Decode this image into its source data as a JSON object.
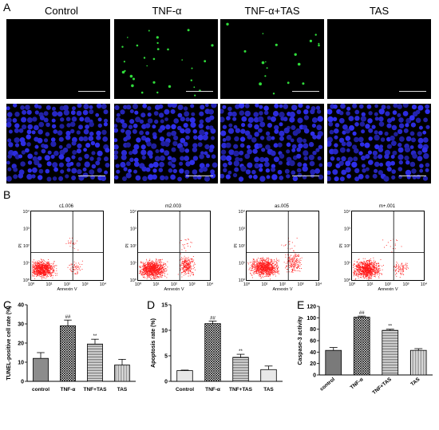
{
  "panels": {
    "A": {
      "letter": "A",
      "columns": [
        "Control",
        "TNF-α",
        "TNF-α+TAS",
        "TAS"
      ],
      "rows": [
        {
          "stain": "green",
          "color": "#2fdc3a",
          "counts": [
            0,
            30,
            18,
            0
          ]
        },
        {
          "stain": "blue",
          "color": "#2b2bd6"
        }
      ]
    },
    "B": {
      "letter": "B",
      "plots": [
        {
          "title": "c1.006"
        },
        {
          "title": "m2.003"
        },
        {
          "title": "as.005"
        },
        {
          "title": "m+.001"
        }
      ],
      "axis_x_label": "Annexin V",
      "axis_y_label": "PI",
      "x_ticks": [
        "10⁰",
        "10¹",
        "10²",
        "10³",
        "10⁴"
      ],
      "y_ticks": [
        "10⁰",
        "10¹",
        "10²",
        "10³",
        "10⁴"
      ],
      "dot_color": "#ff1a1a"
    },
    "C": {
      "letter": "C"
    },
    "D": {
      "letter": "D"
    },
    "E": {
      "letter": "E"
    }
  },
  "chart_data": [
    {
      "type": "bar",
      "ylabel": "TUNEL-positive cell rate (%)",
      "categories": [
        "control",
        "TNF-α",
        "TNF+TAS",
        "TAS"
      ],
      "values": [
        12,
        29,
        19.5,
        8.5
      ],
      "errors": [
        3,
        3,
        2.5,
        3
      ],
      "annotations": [
        "",
        "##",
        "**",
        ""
      ],
      "ylim": [
        0,
        40
      ],
      "yticks": [
        "0",
        "10",
        "20",
        "30",
        "40"
      ]
    },
    {
      "type": "bar",
      "ylabel": "Apoptosis rate (%)",
      "categories": [
        "Control",
        "TNF-α",
        "TNF+TAS",
        "TAS"
      ],
      "values": [
        2.1,
        11.3,
        4.7,
        2.3
      ],
      "errors": [
        0.1,
        0.5,
        0.6,
        0.7
      ],
      "annotations": [
        "",
        "##",
        "**",
        ""
      ],
      "ylim": [
        0,
        15
      ],
      "yticks": [
        "0",
        "5",
        "10",
        "15"
      ]
    },
    {
      "type": "bar",
      "ylabel": "Caspase-3 activity",
      "categories": [
        "control",
        "TNF-α",
        "TNF+TAS",
        "TAS"
      ],
      "values": [
        43,
        101,
        78,
        43
      ],
      "errors": [
        5,
        2,
        2,
        3
      ],
      "annotations": [
        "",
        "##",
        "**",
        ""
      ],
      "ylim": [
        0,
        120
      ],
      "yticks": [
        "0",
        "20",
        "40",
        "60",
        "80",
        "100",
        "120"
      ]
    }
  ]
}
